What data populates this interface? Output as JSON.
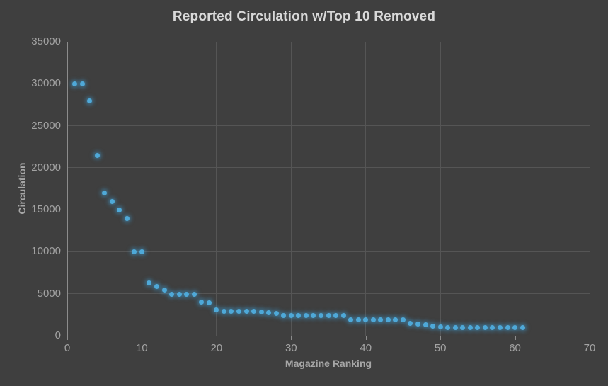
{
  "chart_data": {
    "type": "scatter",
    "title": "Reported Circulation w/Top 10 Removed",
    "xlabel": "Magazine Ranking",
    "ylabel": "Circulation",
    "xlim": [
      0,
      70
    ],
    "ylim": [
      0,
      35000
    ],
    "x_ticks": [
      0,
      10,
      20,
      30,
      40,
      50,
      60,
      70
    ],
    "y_ticks": [
      0,
      5000,
      10000,
      15000,
      20000,
      25000,
      30000,
      35000
    ],
    "grid": true,
    "legend": false,
    "marker_color": "#4fa9d8",
    "background_color": "#3f3f3f",
    "series": [
      {
        "name": "Reported Circulation",
        "x": [
          1,
          2,
          3,
          4,
          5,
          6,
          7,
          8,
          9,
          10,
          11,
          12,
          13,
          14,
          15,
          16,
          17,
          18,
          19,
          20,
          21,
          22,
          23,
          24,
          25,
          26,
          27,
          28,
          29,
          30,
          31,
          32,
          33,
          34,
          35,
          36,
          37,
          38,
          39,
          40,
          41,
          42,
          43,
          44,
          45,
          46,
          47,
          48,
          49,
          50,
          51,
          52,
          53,
          54,
          55,
          56,
          57,
          58,
          59,
          60,
          61
        ],
        "y": [
          30000,
          30000,
          28000,
          21500,
          17000,
          16000,
          15000,
          14000,
          10000,
          10000,
          6300,
          5900,
          5400,
          4900,
          4900,
          4900,
          4900,
          4000,
          3900,
          3100,
          2900,
          2900,
          2900,
          2900,
          2900,
          2850,
          2750,
          2650,
          2400,
          2400,
          2400,
          2400,
          2400,
          2400,
          2400,
          2400,
          2400,
          1900,
          1900,
          1900,
          1900,
          1900,
          1900,
          1900,
          1900,
          1500,
          1400,
          1300,
          1150,
          1050,
          1000,
          950,
          950,
          950,
          950,
          950,
          950,
          950,
          950,
          1000,
          1000
        ]
      }
    ]
  }
}
